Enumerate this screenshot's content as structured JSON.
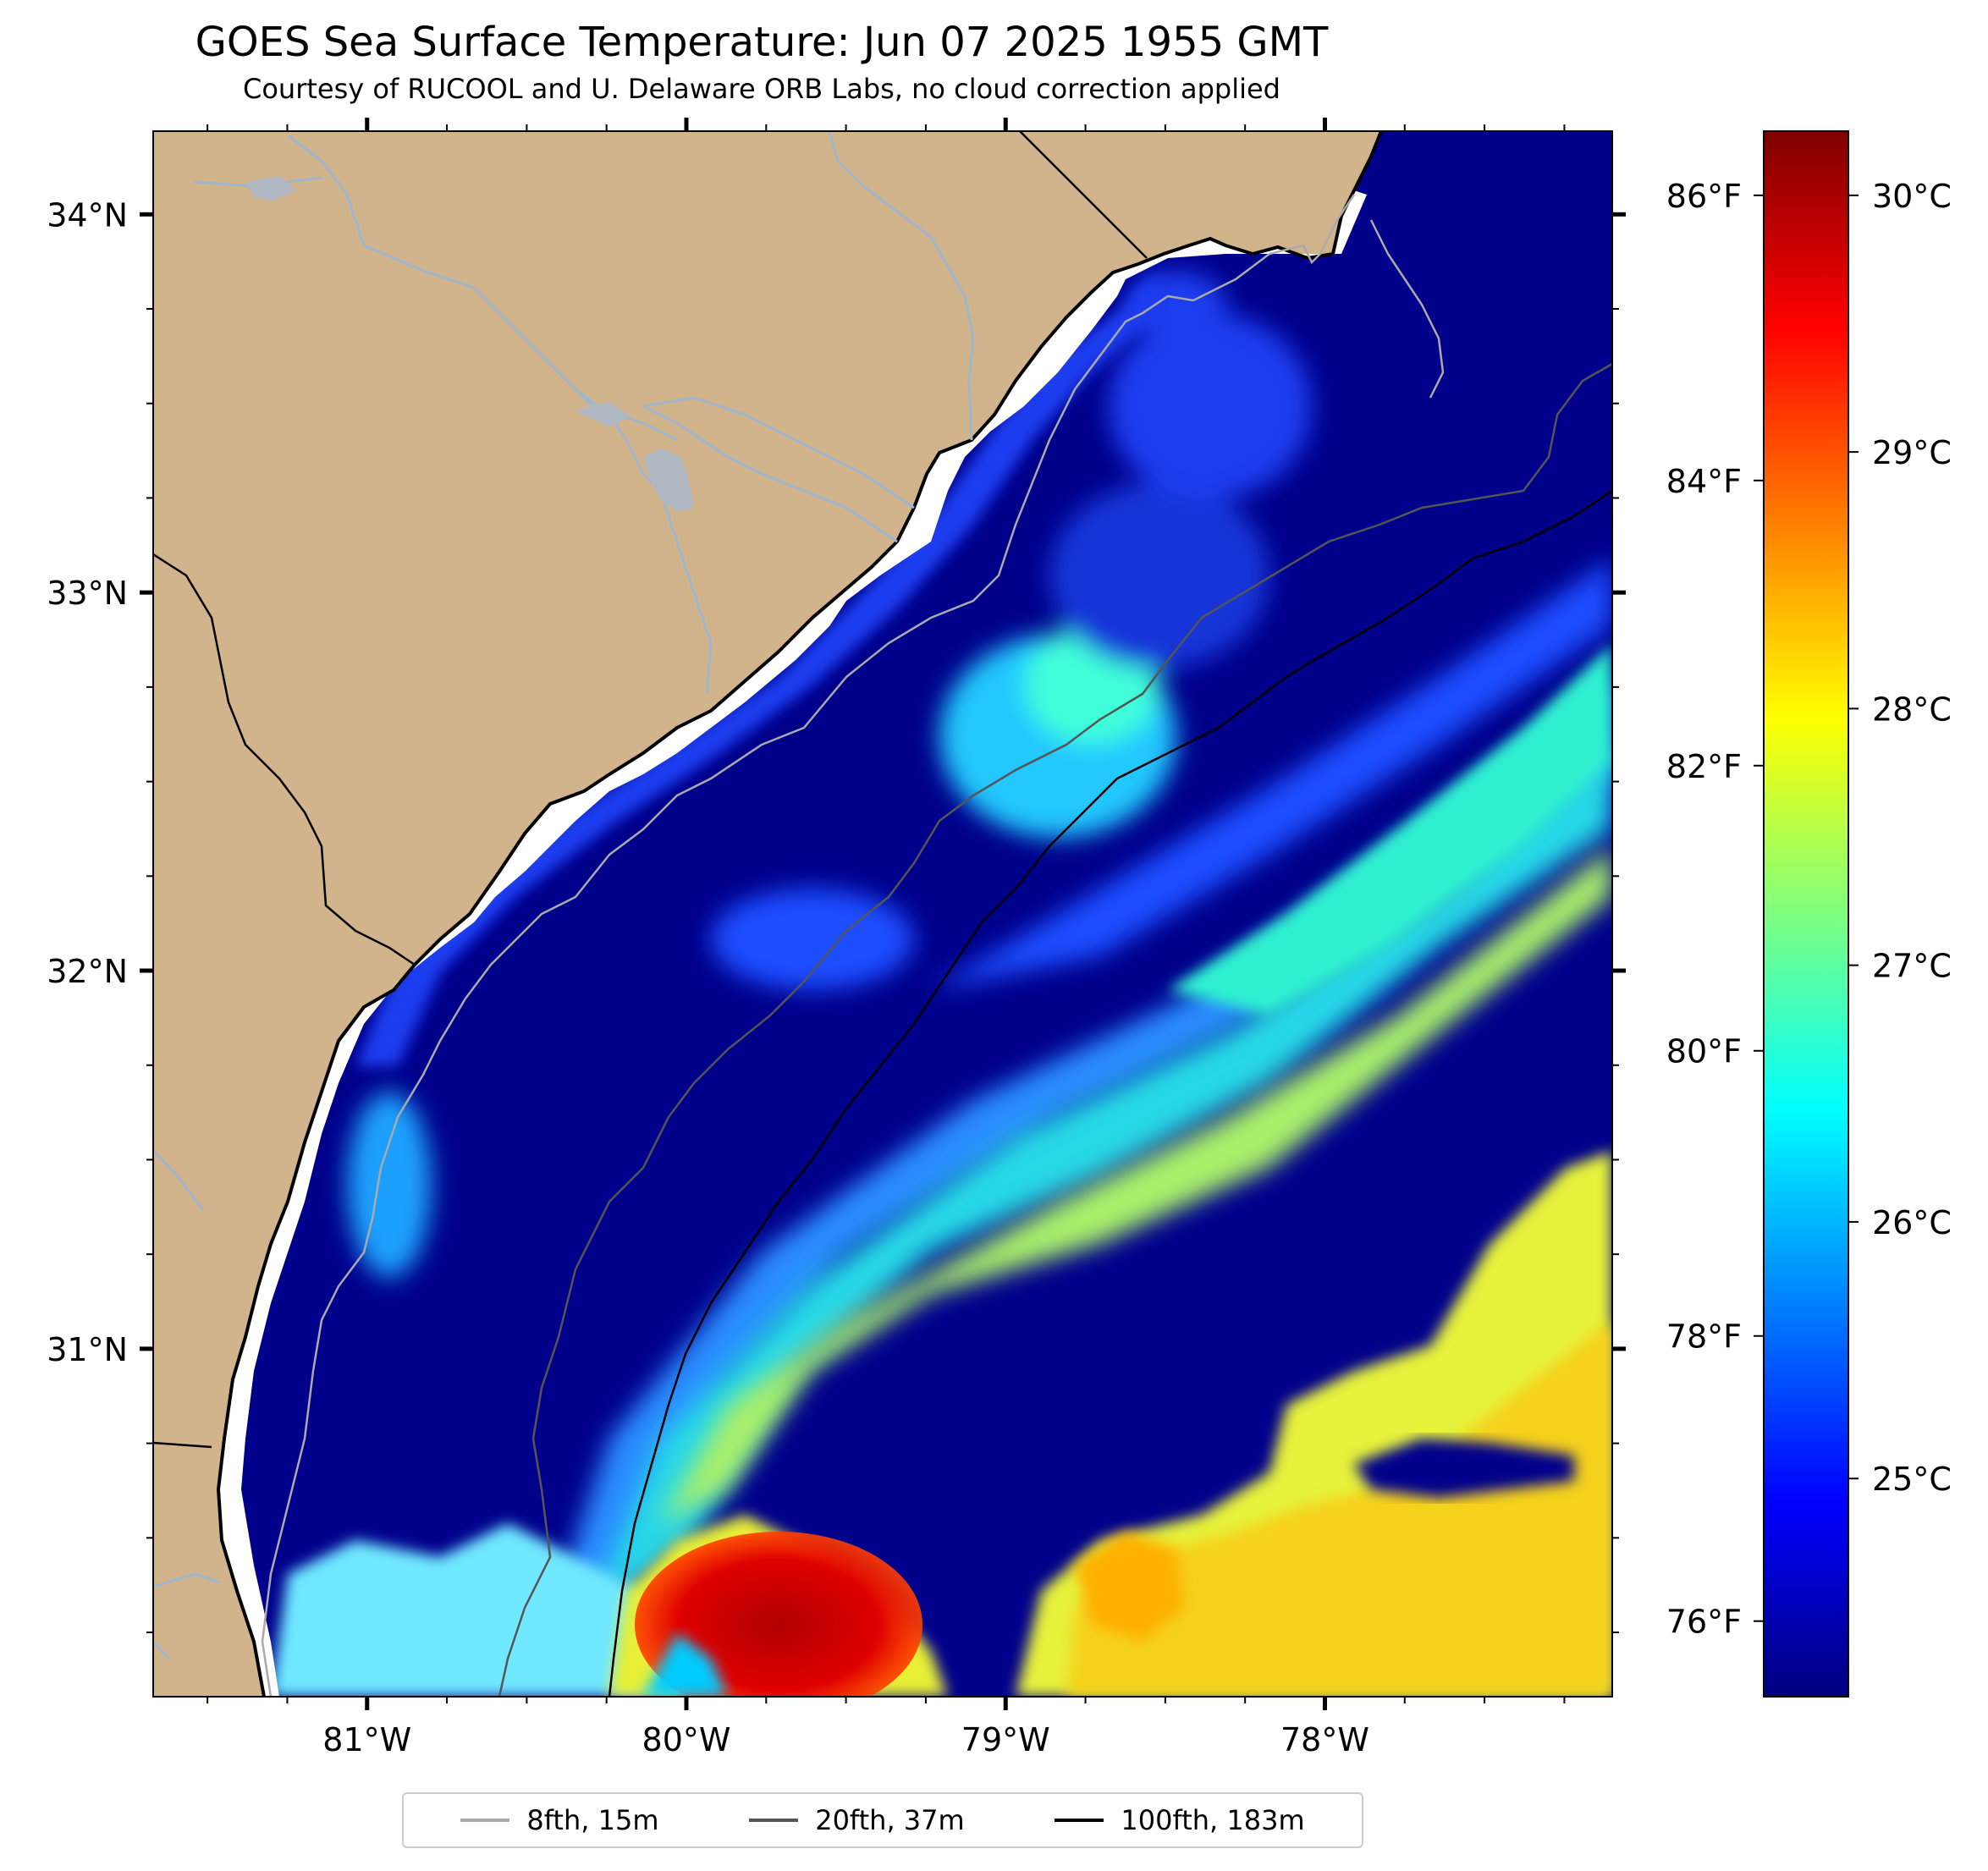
{
  "title": "GOES Sea Surface Temperature: Jun 07 2025 1955 GMT",
  "subtitle": "Courtesy of RUCOOL and U. Delaware ORB Labs, no cloud correction applied",
  "map": {
    "lon_range": [
      -81.67,
      -77.1
    ],
    "lat_range": [
      30.08,
      34.22
    ],
    "lon_ticks": [
      {
        "value": -81,
        "label": "81°W"
      },
      {
        "value": -80,
        "label": "80°W"
      },
      {
        "value": -79,
        "label": "79°W"
      },
      {
        "value": -78,
        "label": "78°W"
      }
    ],
    "lat_ticks": [
      {
        "value": 34,
        "label": "34°N"
      },
      {
        "value": 33,
        "label": "33°N"
      },
      {
        "value": 32,
        "label": "32°N"
      },
      {
        "value": 31,
        "label": "31°N"
      }
    ],
    "colors": {
      "land": "#d2b48c",
      "cold_water": "#00008b",
      "coast_gap": "#ffffff",
      "rivers": "#9fb6cd"
    }
  },
  "colorbar": {
    "min_c": 24.15,
    "max_c": 30.25,
    "celsius_ticks": [
      {
        "value": 25,
        "label": "25°C"
      },
      {
        "value": 26,
        "label": "26°C"
      },
      {
        "value": 27,
        "label": "27°C"
      },
      {
        "value": 28,
        "label": "28°C"
      },
      {
        "value": 29,
        "label": "29°C"
      },
      {
        "value": 30,
        "label": "30°C"
      }
    ],
    "fahrenheit_ticks": [
      {
        "value": 76,
        "label": "76°F"
      },
      {
        "value": 78,
        "label": "78°F"
      },
      {
        "value": 80,
        "label": "80°F"
      },
      {
        "value": 82,
        "label": "82°F"
      },
      {
        "value": 84,
        "label": "84°F"
      },
      {
        "value": 86,
        "label": "86°F"
      }
    ],
    "colormap": [
      "#00007f",
      "#0000ff",
      "#007fff",
      "#00ffff",
      "#7fff7f",
      "#ffff00",
      "#ff7f00",
      "#ff0000",
      "#7f0000"
    ]
  },
  "legend": [
    {
      "label": "8fth, 15m",
      "color": "#aaaaaa"
    },
    {
      "label": "20fth, 37m",
      "color": "#555555"
    },
    {
      "label": "100fth, 183m",
      "color": "#000000"
    }
  ]
}
